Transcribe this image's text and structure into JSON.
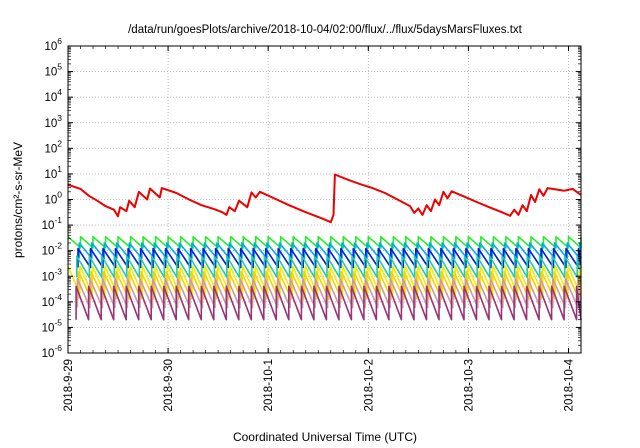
{
  "chart_data": {
    "type": "line",
    "title": "/data/run/goesPlots/archive/2018-10-04/02:00/flux/../flux/5daysMarsFluxes.txt",
    "xlabel": "Coordinated Universal Time (UTC)",
    "ylabel": "protons/cm²-s-sr-MeV",
    "y_scale": "log",
    "ylim": [
      "1e-6",
      "1e6"
    ],
    "xlim": [
      "2018-09-29T00:00",
      "2018-10-04T03:00"
    ],
    "grid": "dotted",
    "x_ticks": [
      {
        "date": "2018-09-29T00:00",
        "label": "2018-9-29"
      },
      {
        "date": "2018-09-30T00:00",
        "label": "2018-9-30"
      },
      {
        "date": "2018-10-01T00:00",
        "label": "2018-10-1"
      },
      {
        "date": "2018-10-02T00:00",
        "label": "2018-10-2"
      },
      {
        "date": "2018-10-03T00:00",
        "label": "2018-10-3"
      },
      {
        "date": "2018-10-04T00:00",
        "label": "2018-10-4"
      }
    ],
    "y_ticks": [
      {
        "base": "10",
        "exp": "-6"
      },
      {
        "base": "10",
        "exp": "-5"
      },
      {
        "base": "10",
        "exp": "-4"
      },
      {
        "base": "10",
        "exp": "-3"
      },
      {
        "base": "10",
        "exp": "-2"
      },
      {
        "base": "10",
        "exp": "-1"
      },
      {
        "base": "10",
        "exp": "0"
      },
      {
        "base": "10",
        "exp": "1"
      },
      {
        "base": "10",
        "exp": "2"
      },
      {
        "base": "10",
        "exp": "3"
      },
      {
        "base": "10",
        "exp": "4"
      },
      {
        "base": "10",
        "exp": "5"
      },
      {
        "base": "10",
        "exp": "6"
      }
    ],
    "series": [
      {
        "color": "#ee0000",
        "points": [
          [
            "2018-09-29T00:00",
            3.8
          ],
          [
            "2018-09-29T03:00",
            2.6
          ],
          [
            "2018-09-29T05:00",
            1.4
          ],
          [
            "2018-09-29T07:00",
            0.9
          ],
          [
            "2018-09-29T09:00",
            0.55
          ],
          [
            "2018-09-29T11:00",
            0.4
          ],
          [
            "2018-09-29T12:00",
            0.22
          ],
          [
            "2018-09-29T12:30",
            0.5
          ],
          [
            "2018-09-29T14:00",
            0.35
          ],
          [
            "2018-09-29T14:40",
            0.9
          ],
          [
            "2018-09-29T16:00",
            0.5
          ],
          [
            "2018-09-29T17:00",
            2.0
          ],
          [
            "2018-09-29T19:00",
            1.0
          ],
          [
            "2018-09-29T19:40",
            2.7
          ],
          [
            "2018-09-29T22:00",
            1.2
          ],
          [
            "2018-09-29T22:30",
            2.8
          ],
          [
            "2018-09-30T02:00",
            1.8
          ],
          [
            "2018-09-30T05:00",
            1.0
          ],
          [
            "2018-09-30T08:00",
            0.6
          ],
          [
            "2018-09-30T11:00",
            0.42
          ],
          [
            "2018-09-30T13:00",
            0.32
          ],
          [
            "2018-09-30T14:00",
            0.25
          ],
          [
            "2018-09-30T14:40",
            0.5
          ],
          [
            "2018-09-30T16:00",
            0.35
          ],
          [
            "2018-09-30T17:00",
            0.9
          ],
          [
            "2018-09-30T19:00",
            0.5
          ],
          [
            "2018-09-30T20:00",
            1.9
          ],
          [
            "2018-09-30T21:00",
            1.2
          ],
          [
            "2018-09-30T22:00",
            2.0
          ],
          [
            "2018-10-01T01:00",
            1.2
          ],
          [
            "2018-10-01T05:00",
            0.6
          ],
          [
            "2018-10-01T09:00",
            0.32
          ],
          [
            "2018-10-01T13:00",
            0.18
          ],
          [
            "2018-10-01T15:00",
            0.13
          ],
          [
            "2018-10-01T15:40",
            0.25
          ],
          [
            "2018-10-01T16:00",
            9.5
          ],
          [
            "2018-10-01T19:00",
            6.0
          ],
          [
            "2018-10-01T22:00",
            4.0
          ],
          [
            "2018-10-02T01:00",
            2.8
          ],
          [
            "2018-10-02T04:00",
            1.8
          ],
          [
            "2018-10-02T07:00",
            1.0
          ],
          [
            "2018-10-02T10:00",
            0.55
          ],
          [
            "2018-10-02T11:00",
            0.3
          ],
          [
            "2018-10-02T12:00",
            0.45
          ],
          [
            "2018-10-02T13:00",
            0.25
          ],
          [
            "2018-10-02T14:00",
            0.6
          ],
          [
            "2018-10-02T15:00",
            0.35
          ],
          [
            "2018-10-02T16:00",
            1.0
          ],
          [
            "2018-10-02T17:00",
            0.6
          ],
          [
            "2018-10-02T18:00",
            2.0
          ],
          [
            "2018-10-02T19:00",
            1.1
          ],
          [
            "2018-10-02T20:00",
            2.1
          ],
          [
            "2018-10-02T23:00",
            1.3
          ],
          [
            "2018-10-03T02:00",
            0.8
          ],
          [
            "2018-10-03T05:00",
            0.5
          ],
          [
            "2018-10-03T08:00",
            0.32
          ],
          [
            "2018-10-03T10:00",
            0.23
          ],
          [
            "2018-10-03T11:00",
            0.4
          ],
          [
            "2018-10-03T12:00",
            0.25
          ],
          [
            "2018-10-03T13:00",
            0.6
          ],
          [
            "2018-10-03T14:00",
            0.35
          ],
          [
            "2018-10-03T15:00",
            1.5
          ],
          [
            "2018-10-03T16:00",
            0.8
          ],
          [
            "2018-10-03T17:00",
            2.5
          ],
          [
            "2018-10-03T18:00",
            1.4
          ],
          [
            "2018-10-03T19:00",
            2.8
          ],
          [
            "2018-10-03T23:00",
            2.2
          ],
          [
            "2018-10-04T01:00",
            2.6
          ],
          [
            "2018-10-04T03:00",
            1.5
          ]
        ]
      },
      {
        "color": "#22ee22",
        "peak": 0.035,
        "trough": 0.013,
        "phase": 0.0
      },
      {
        "color": "#00aaee",
        "peak": 0.02,
        "trough": 0.005,
        "phase": 0.1
      },
      {
        "color": "#0022cc",
        "peak": 0.012,
        "trough": 0.0022,
        "phase": 0.2
      },
      {
        "color": "#22ccaa",
        "peak": 0.006,
        "trough": 0.0009,
        "phase": 0.3
      },
      {
        "color": "#eeee00",
        "peak": 0.0025,
        "trough": 0.0002,
        "phase": 0.05
      },
      {
        "color": "#ffcc00",
        "peak": 0.0015,
        "trough": 0.00013,
        "phase": 0.15
      },
      {
        "color": "#cc99aa",
        "peak": 0.0008,
        "trough": 6e-05,
        "phase": 0.25
      },
      {
        "color": "#993377",
        "peak": 0.0004,
        "trough": 2e-05,
        "phase": 0.35
      }
    ],
    "sawtooth_period_hours": 3
  }
}
